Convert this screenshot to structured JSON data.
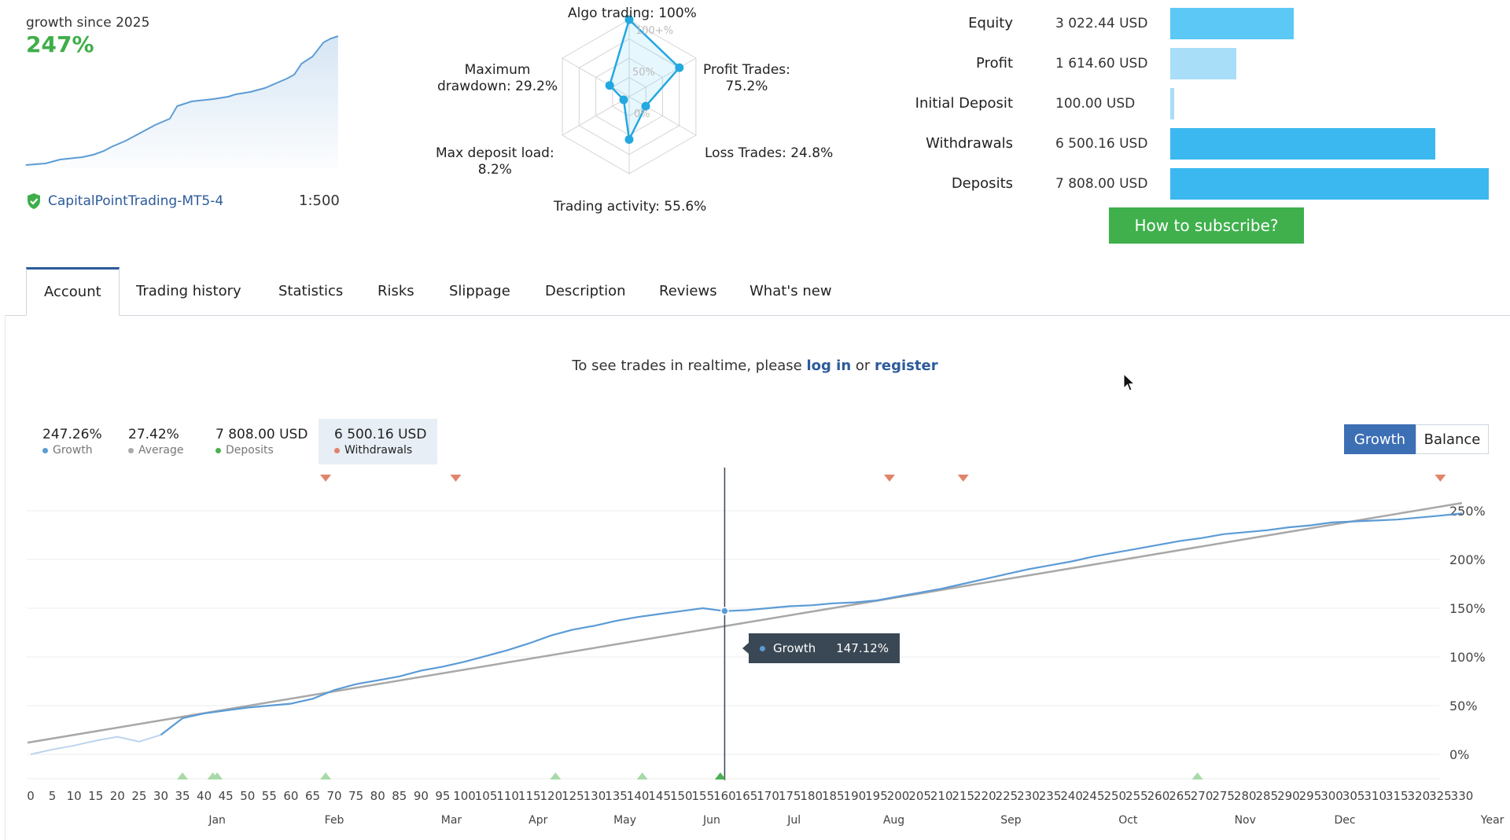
{
  "summary": {
    "growth_label": "growth since 2025",
    "growth_value": "247%",
    "broker": "CapitalPointTrading-MT5-4",
    "leverage": "1:500"
  },
  "radar": {
    "labels": {
      "algo": "Algo trading: 100%",
      "profit": "Profit Trades:\n75.2%",
      "loss": "Loss Trades: 24.8%",
      "activity": "Trading activity: 55.6%",
      "deposit_load": "Max deposit load:\n8.2%",
      "drawdown": "Maximum\ndrawdown: 29.2%"
    },
    "scale": [
      "100+%",
      "50%",
      "0%"
    ],
    "values": {
      "algo": 100,
      "profit": 75.2,
      "loss": 24.8,
      "activity": 55.6,
      "deposit_load": 8.2,
      "drawdown": 29.2
    }
  },
  "account": [
    {
      "name": "Equity",
      "value": "3 022.44 USD",
      "amount": 3022.44,
      "color": "#5bc8f5"
    },
    {
      "name": "Profit",
      "value": "1 614.60 USD",
      "amount": 1614.6,
      "color": "#a8def8"
    },
    {
      "name": "Initial Deposit",
      "value": "100.00 USD",
      "amount": 100.0,
      "color": "#a8def8"
    },
    {
      "name": "Withdrawals",
      "value": "6 500.16 USD",
      "amount": 6500.16,
      "color": "#3bb8ef"
    },
    {
      "name": "Deposits",
      "value": "7 808.00 USD",
      "amount": 7808.0,
      "color": "#3bb8ef"
    }
  ],
  "subscribe_label": "How to subscribe?",
  "tabs": [
    "Account",
    "Trading history",
    "Statistics",
    "Risks",
    "Slippage",
    "Description",
    "Reviews",
    "What's new"
  ],
  "realtime": {
    "prefix": "To see trades in realtime, please",
    "login": "log in",
    "or": "or",
    "register": "register"
  },
  "stats": [
    {
      "value": "247.26%",
      "name": "Growth",
      "color": "#5b9bd5"
    },
    {
      "value": "27.42%",
      "name": "Average",
      "color": "#aaaaaa"
    },
    {
      "value": "7 808.00 USD",
      "name": "Deposits",
      "color": "#4caf50"
    },
    {
      "value": "6 500.16 USD",
      "name": "Withdrawals",
      "color": "#e0846a"
    }
  ],
  "toggle": {
    "growth": "Growth",
    "balance": "Balance"
  },
  "colors": {
    "accent": "#2d5b9a",
    "growth_line": "#5b9bd5",
    "average_line": "#aaaaaa",
    "deposit_marker": "#9fd59f",
    "withdrawal_marker": "#e0846a"
  },
  "tooltip": {
    "series": "Growth",
    "value": "147.12%"
  },
  "chart_data": {
    "type": "line",
    "title": "",
    "xlabel": "",
    "ylabel": "",
    "x_ticks": [
      0,
      5,
      10,
      15,
      20,
      25,
      30,
      35,
      40,
      45,
      50,
      55,
      60,
      65,
      70,
      75,
      80,
      85,
      90,
      95,
      100,
      105,
      110,
      115,
      120,
      125,
      130,
      135,
      140,
      145,
      150,
      155,
      160,
      165,
      170,
      175,
      180,
      185,
      190,
      195,
      200,
      205,
      210,
      215,
      220,
      225,
      230,
      235,
      240,
      245,
      250,
      255,
      260,
      265,
      270,
      275,
      280,
      285,
      290,
      295,
      300,
      305,
      310,
      315,
      320,
      325,
      330
    ],
    "months": [
      {
        "label": "Jan",
        "x": 43
      },
      {
        "label": "Feb",
        "x": 70
      },
      {
        "label": "Mar",
        "x": 97
      },
      {
        "label": "Apr",
        "x": 117
      },
      {
        "label": "May",
        "x": 137
      },
      {
        "label": "Jun",
        "x": 157
      },
      {
        "label": "Jul",
        "x": 176
      },
      {
        "label": "Aug",
        "x": 199
      },
      {
        "label": "Sep",
        "x": 226
      },
      {
        "label": "Oct",
        "x": 253
      },
      {
        "label": "Nov",
        "x": 280
      },
      {
        "label": "Dec",
        "x": 303
      },
      {
        "label": "Year",
        "x": 337
      }
    ],
    "y_ticks": [
      0,
      50,
      100,
      150,
      200,
      250
    ],
    "y_tick_labels": [
      "0%",
      "50%",
      "100%",
      "150%",
      "200%",
      "250%"
    ],
    "ylim": [
      -25,
      275
    ],
    "xlim": [
      0,
      340
    ],
    "series": [
      {
        "name": "Growth",
        "x": [
          0,
          5,
          10,
          15,
          20,
          25,
          30,
          35,
          40,
          45,
          50,
          60,
          65,
          70,
          75,
          80,
          85,
          90,
          95,
          100,
          105,
          110,
          115,
          120,
          125,
          130,
          135,
          140,
          145,
          150,
          155,
          160,
          165,
          170,
          175,
          180,
          185,
          190,
          195,
          200,
          205,
          210,
          215,
          220,
          225,
          230,
          235,
          240,
          245,
          250,
          255,
          260,
          265,
          270,
          275,
          280,
          285,
          290,
          295,
          300,
          305,
          310,
          315,
          320,
          325,
          330
        ],
        "y": [
          0,
          5,
          9,
          14,
          18,
          13,
          20,
          37,
          42,
          45,
          48,
          52,
          57,
          66,
          72,
          76,
          80,
          86,
          90,
          95,
          101,
          107,
          114,
          122,
          128,
          132,
          137,
          141,
          144,
          147,
          150,
          147,
          148,
          150,
          152,
          153,
          155,
          156,
          158,
          162,
          166,
          170,
          175,
          180,
          185,
          190,
          194,
          198,
          203,
          207,
          211,
          215,
          219,
          222,
          226,
          228,
          230,
          233,
          235,
          238,
          239,
          240,
          241,
          243,
          245,
          247.26
        ]
      },
      {
        "name": "Average",
        "x": [
          0,
          330
        ],
        "y": [
          12,
          258
        ]
      }
    ],
    "withdrawal_markers_x": [
      68,
      98,
      198,
      215,
      325
    ],
    "deposit_markers_x": [
      35,
      42,
      43,
      68,
      121,
      141,
      159,
      269
    ],
    "crosshair_x": 160,
    "grid": true,
    "legend": "top-left"
  }
}
